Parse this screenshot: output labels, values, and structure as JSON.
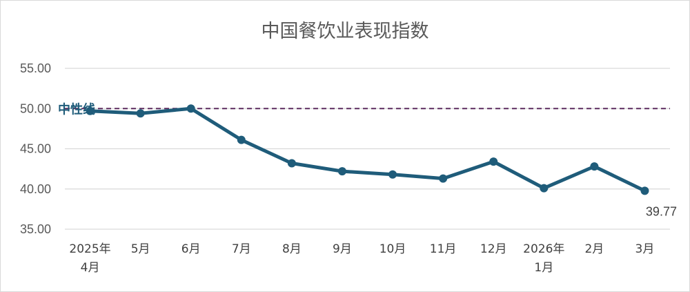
{
  "chart_data": {
    "type": "line",
    "title": "中国餐饮业表现指数",
    "categories": [
      "2025年|4月",
      "5月",
      "6月",
      "7月",
      "8月",
      "9月",
      "10月",
      "11月",
      "12月",
      "2026年|1月",
      "2月",
      "3月"
    ],
    "series": [
      {
        "name": "",
        "values": [
          49.7,
          49.4,
          50.0,
          46.1,
          43.2,
          42.2,
          41.8,
          41.3,
          43.4,
          40.1,
          42.8,
          39.77
        ]
      }
    ],
    "ylim": [
      35,
      55
    ],
    "yticks": [
      "35.00",
      "40.00",
      "45.00",
      "50.00",
      "55.00"
    ],
    "reference_line": {
      "value": 50,
      "label": "中性线",
      "color": "#5b2a5e"
    },
    "data_labels": [
      {
        "index": 11,
        "text": "39.77"
      }
    ],
    "series_color": "#1f5c7a",
    "grid": true,
    "legend": "none"
  }
}
